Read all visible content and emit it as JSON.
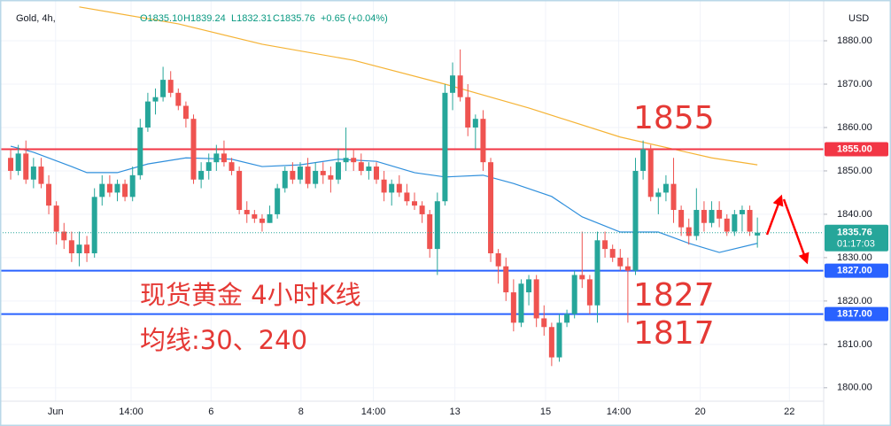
{
  "chart_data": {
    "type": "candlestick",
    "title": "Gold, 4h,",
    "legend_text": [
      "O1835.10",
      "H1839.24",
      "L1832.31",
      "C1835.76",
      "+0.65 (+0.04%)"
    ],
    "currency": "USD",
    "up_color": "#26a69a",
    "down_color": "#ef5350",
    "grid": true,
    "x": [
      0,
      1,
      2,
      3,
      4,
      5,
      6,
      7,
      8,
      9,
      10,
      11,
      12,
      13,
      14,
      15,
      16,
      17,
      18,
      19,
      20,
      21,
      22,
      23,
      24,
      25,
      26,
      27,
      28,
      29,
      30,
      31,
      32,
      33,
      34,
      35,
      36,
      37,
      38,
      39,
      40,
      41,
      42,
      43,
      44,
      45,
      46,
      47,
      48,
      49,
      50,
      51,
      52,
      53,
      54,
      55,
      56,
      57,
      58,
      59,
      60,
      61,
      62,
      63,
      64,
      65,
      66,
      67,
      68,
      69,
      70,
      71,
      72,
      73,
      74,
      75,
      76,
      77,
      78,
      79,
      80,
      81,
      82,
      83,
      84,
      85,
      86,
      87,
      88,
      89,
      90,
      91,
      92,
      93,
      94,
      95,
      96,
      97,
      98
    ],
    "open": [
      1853,
      1850,
      1854,
      1848,
      1851,
      1847,
      1842,
      1836,
      1834,
      1831,
      1833,
      1831,
      1844,
      1847,
      1845,
      1847,
      1844,
      1849,
      1860,
      1866,
      1867,
      1871,
      1868,
      1865,
      1862,
      1848,
      1850,
      1852,
      1854,
      1852,
      1850,
      1841,
      1840,
      1839,
      1838,
      1840,
      1846,
      1850,
      1848,
      1851,
      1847,
      1850,
      1849,
      1848,
      1852,
      1853,
      1852,
      1850,
      1851,
      1848,
      1845,
      1847,
      1845,
      1843,
      1842,
      1840,
      1832,
      1843,
      1868,
      1872,
      1867,
      1860,
      1862,
      1852,
      1831,
      1828,
      1822,
      1815,
      1822,
      1825,
      1816,
      1814,
      1807,
      1815,
      1817,
      1826,
      1825,
      1819,
      1834,
      1832,
      1830,
      1828,
      1827,
      1850,
      1855,
      1844,
      1845,
      1847,
      1841,
      1837,
      1835,
      1841,
      1838,
      1841,
      1839,
      1836,
      1840,
      1841,
      1835.1
    ],
    "high": [
      1855,
      1856,
      1857,
      1853,
      1853,
      1849,
      1843,
      1838,
      1836,
      1836,
      1835,
      1846,
      1849,
      1849,
      1848,
      1848,
      1851,
      1862,
      1868,
      1869,
      1874,
      1873,
      1869,
      1866,
      1863,
      1852,
      1854,
      1856,
      1857,
      1853,
      1851,
      1843,
      1841,
      1840,
      1842,
      1847,
      1851,
      1852,
      1852,
      1853,
      1852,
      1852,
      1851,
      1855,
      1860,
      1855,
      1854,
      1852,
      1852,
      1850,
      1848,
      1849,
      1847,
      1845,
      1843,
      1841,
      1845,
      1870,
      1875,
      1878,
      1870,
      1863,
      1864,
      1853,
      1832,
      1830,
      1825,
      1825,
      1826,
      1826,
      1819,
      1815,
      1817,
      1818,
      1827,
      1836,
      1826,
      1836,
      1836,
      1833,
      1832,
      1830,
      1853,
      1857,
      1856,
      1846,
      1849,
      1853,
      1842,
      1839,
      1846,
      1843,
      1843,
      1843,
      1840,
      1841,
      1842,
      1842,
      1839.24
    ],
    "low": [
      1848,
      1849,
      1847,
      1846,
      1846,
      1840,
      1833,
      1832,
      1829,
      1828,
      1829,
      1830,
      1842,
      1844,
      1843,
      1843,
      1843,
      1848,
      1859,
      1863,
      1866,
      1867,
      1864,
      1860,
      1847,
      1846,
      1848,
      1850,
      1851,
      1849,
      1840,
      1838,
      1838,
      1836,
      1838,
      1839,
      1845,
      1847,
      1847,
      1846,
      1846,
      1847,
      1845,
      1847,
      1850,
      1850,
      1849,
      1848,
      1847,
      1843,
      1842,
      1844,
      1842,
      1841,
      1838,
      1830,
      1826,
      1842,
      1864,
      1866,
      1858,
      1855,
      1850,
      1829,
      1824,
      1820,
      1813,
      1814,
      1819,
      1814,
      1812,
      1805,
      1806,
      1814,
      1816,
      1823,
      1817,
      1815,
      1830,
      1829,
      1827,
      1815,
      1826,
      1848,
      1843,
      1840,
      1843,
      1838,
      1835,
      1833,
      1834,
      1836,
      1837,
      1837,
      1835,
      1835,
      1836,
      1835,
      1832.31
    ],
    "close": [
      1850,
      1854,
      1848,
      1851,
      1847,
      1842,
      1836,
      1834,
      1831,
      1833,
      1831,
      1844,
      1847,
      1845,
      1847,
      1844,
      1849,
      1860,
      1866,
      1867,
      1871,
      1868,
      1865,
      1862,
      1848,
      1850,
      1852,
      1854,
      1852,
      1850,
      1841,
      1840,
      1839,
      1838,
      1840,
      1846,
      1850,
      1848,
      1851,
      1847,
      1850,
      1849,
      1848,
      1852,
      1853,
      1852,
      1850,
      1851,
      1848,
      1845,
      1847,
      1845,
      1843,
      1842,
      1840,
      1832,
      1843,
      1868,
      1872,
      1867,
      1860,
      1862,
      1852,
      1831,
      1828,
      1822,
      1815,
      1824,
      1825,
      1816,
      1814,
      1807,
      1815,
      1817,
      1826,
      1825,
      1819,
      1834,
      1832,
      1830,
      1828,
      1827,
      1850,
      1855,
      1844,
      1845,
      1847,
      1841,
      1837,
      1835,
      1841,
      1838,
      1841,
      1839,
      1836,
      1840,
      1841,
      1836,
      1835.76
    ],
    "lines": [
      {
        "color": "#f5b335",
        "x": [
          9,
          22,
          33,
          45,
          57,
          68,
          80,
          92,
          98
        ],
        "values": [
          1887.8,
          1883.9,
          1879.2,
          1875.5,
          1870,
          1864.5,
          1857.8,
          1853,
          1851.4
        ]
      },
      {
        "color": "#2f8fdc",
        "x": [
          0,
          3,
          8,
          10,
          14,
          18,
          23,
          29,
          33,
          38,
          43,
          48,
          53,
          57,
          62,
          66,
          71,
          75,
          80,
          85,
          89,
          93,
          98
        ],
        "values": [
          1855.7,
          1854.3,
          1851,
          1849.6,
          1849.6,
          1851.6,
          1853,
          1852.7,
          1851,
          1851.4,
          1852.7,
          1852.2,
          1849.6,
          1848.6,
          1849,
          1847.1,
          1844.1,
          1839.4,
          1835.9,
          1835.9,
          1833.3,
          1831.2,
          1833.3
        ]
      }
    ],
    "levels": [
      {
        "value": 1855,
        "label": "1855.00",
        "color": "#f23645"
      },
      {
        "value": 1827,
        "label": "1827.00",
        "color": "#2962ff"
      },
      {
        "value": 1817,
        "label": "1817.00",
        "color": "#2962ff"
      }
    ],
    "last_price": {
      "value": 1835.76,
      "label": "1835.76",
      "countdown": "01:17:03",
      "color": "#26a69a"
    },
    "xlim": [
      -1.4,
      106.7
    ],
    "xticks": [
      {
        "value": 5.9,
        "label": "Jun"
      },
      {
        "value": 15.8,
        "label": "14:00"
      },
      {
        "value": 26.3,
        "label": "6"
      },
      {
        "value": 38.1,
        "label": "8"
      },
      {
        "value": 47.6,
        "label": "14:00"
      },
      {
        "value": 58.3,
        "label": "13"
      },
      {
        "value": 70.2,
        "label": "15"
      },
      {
        "value": 79.8,
        "label": "14:00"
      },
      {
        "value": 90.5,
        "label": "20"
      },
      {
        "value": 102.2,
        "label": "22"
      }
    ],
    "ylim": [
      1796.9,
      1889.4
    ],
    "yticks": [
      {
        "value": 1800,
        "label": "1800.00"
      },
      {
        "value": 1810,
        "label": "1810.00"
      },
      {
        "value": 1820,
        "label": "1820.00"
      },
      {
        "value": 1830,
        "label": "1830.00"
      },
      {
        "value": 1840,
        "label": "1840.00"
      },
      {
        "value": 1850,
        "label": "1850.00"
      },
      {
        "value": 1860,
        "label": "1860.00"
      },
      {
        "value": 1870,
        "label": "1870.00"
      },
      {
        "value": 1880,
        "label": "1880.00"
      }
    ],
    "annotations": [
      {
        "text": "1855",
        "color": "#e53935"
      },
      {
        "text": "1827",
        "color": "#e53935"
      },
      {
        "text": "1817",
        "color": "#e53935"
      },
      {
        "text": "现货黄金 4小时K线",
        "color": "#e53935"
      },
      {
        "text": "均线:30、240",
        "color": "#e53935"
      }
    ]
  }
}
